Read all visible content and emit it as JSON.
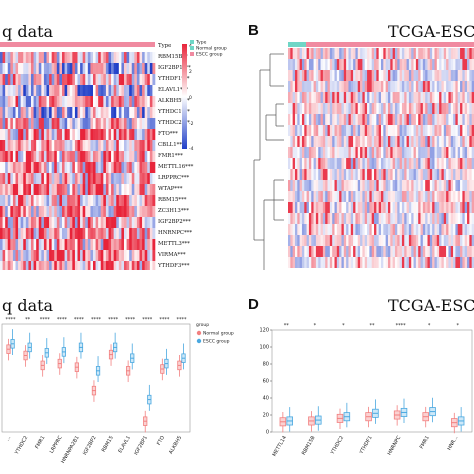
{
  "panels": {
    "A": {
      "title": "q data"
    },
    "B": {
      "letter": "B",
      "title": "TCGA-ESCA"
    },
    "C": {
      "title": "q data"
    },
    "D": {
      "letter": "D",
      "title": "TCGA-ESCA"
    }
  },
  "heatmap_legend": {
    "header": "Type",
    "groups": [
      "Normal group",
      "ESCC group"
    ],
    "scale_ticks": [
      "4",
      "2",
      "0",
      "-2",
      "-4"
    ],
    "colors": {
      "normal": "#6fd6c6",
      "tumor": "#f08aa0",
      "high": "#e8243a",
      "mid": "#ffffff",
      "low": "#2240c8"
    }
  },
  "heatmap_A": {
    "type_label": "Type",
    "genes": [
      "RBM15B**",
      "IGF2BP1***",
      "YTHDF1***",
      "ELAVL1***",
      "ALKBH5***",
      "YTHDC1***",
      "YTHDC2***",
      "FTO***",
      "CBLL1***",
      "FMR1***",
      "METTL16***",
      "LRPPRC***",
      "WTAP***",
      "RBM15***",
      "ZC3H13***",
      "IGF2BP2***",
      "HNRNPC***",
      "METTL3***",
      "VIRMA***",
      "YTHDF3***"
    ]
  },
  "boxplot_legend": {
    "title": "group",
    "groups": [
      "Normal group",
      "ESCC group"
    ],
    "colors": {
      "normal": "#f28080",
      "tumor": "#4aa8e0"
    }
  },
  "chart_data": [
    {
      "type": "box",
      "panel": "C",
      "categories": [
        "...",
        "YTHDC2",
        "FMR1",
        "LRPPRC",
        "HNRNPA2B1",
        "IGF2BP2",
        "RBM15",
        "ELAVL1",
        "IGF2BP1",
        "FTO",
        "ALKBH5"
      ],
      "significance": [
        "****",
        "**",
        "****",
        "****",
        "****",
        "****",
        "****",
        "****",
        "****",
        "****",
        "****"
      ],
      "series": [
        {
          "name": "Normal group",
          "medians": [
            9.2,
            8.5,
            7.4,
            7.6,
            7.2,
            4.6,
            8.6,
            6.8,
            1.2,
            7.0,
            7.4
          ]
        },
        {
          "name": "ESCC group",
          "medians": [
            9.8,
            9.4,
            8.8,
            8.9,
            9.4,
            6.8,
            9.4,
            8.2,
            3.6,
            7.6,
            8.2
          ]
        }
      ]
    },
    {
      "type": "box",
      "panel": "D",
      "categories": [
        "METTL14",
        "RBM15B",
        "YTHDC2",
        "YTHDF1",
        "HNRNPC",
        "FMR1",
        "HNR..."
      ],
      "significance": [
        "**",
        "*",
        "*",
        "**",
        "****",
        "*",
        "*"
      ],
      "yticks": [
        0,
        20,
        40,
        60,
        80,
        100,
        120
      ],
      "ylim": [
        0,
        120
      ],
      "series": [
        {
          "name": "Normal group",
          "medians": [
            12,
            13,
            16,
            18,
            20,
            18,
            11
          ]
        },
        {
          "name": "ESCC group",
          "medians": [
            13,
            14,
            18,
            22,
            23,
            24,
            13
          ]
        }
      ]
    }
  ]
}
